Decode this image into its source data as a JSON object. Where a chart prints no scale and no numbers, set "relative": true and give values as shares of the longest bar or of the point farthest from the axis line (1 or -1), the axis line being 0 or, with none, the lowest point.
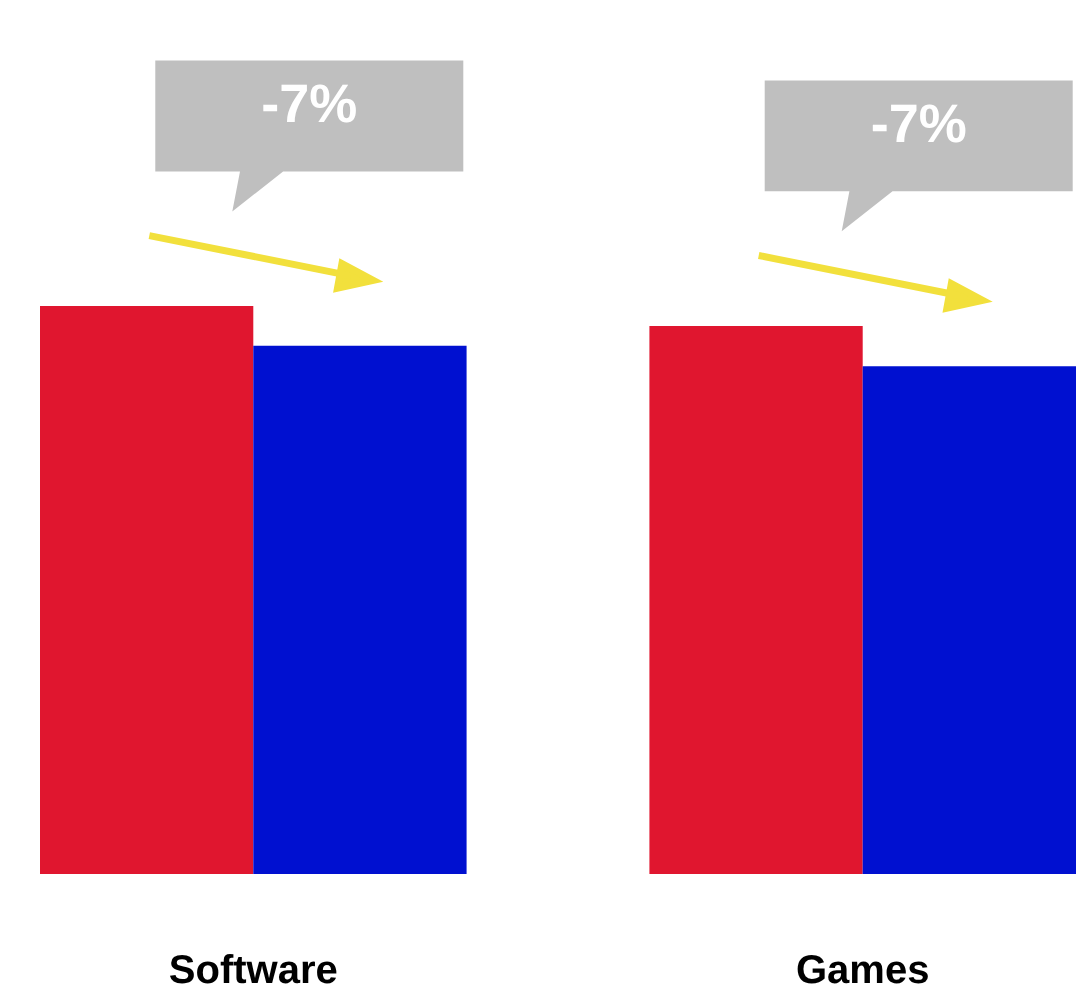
{
  "chart_data": {
    "type": "bar",
    "relative": true,
    "categories": [
      "Software",
      "Games"
    ],
    "series": [
      {
        "color": "#e0162f",
        "values": [
          1,
          0.965
        ]
      },
      {
        "color": "#0010d0",
        "values": [
          0.93,
          0.894
        ]
      }
    ],
    "annotations": [
      "-7%",
      "-7%"
    ],
    "legend": false
  }
}
